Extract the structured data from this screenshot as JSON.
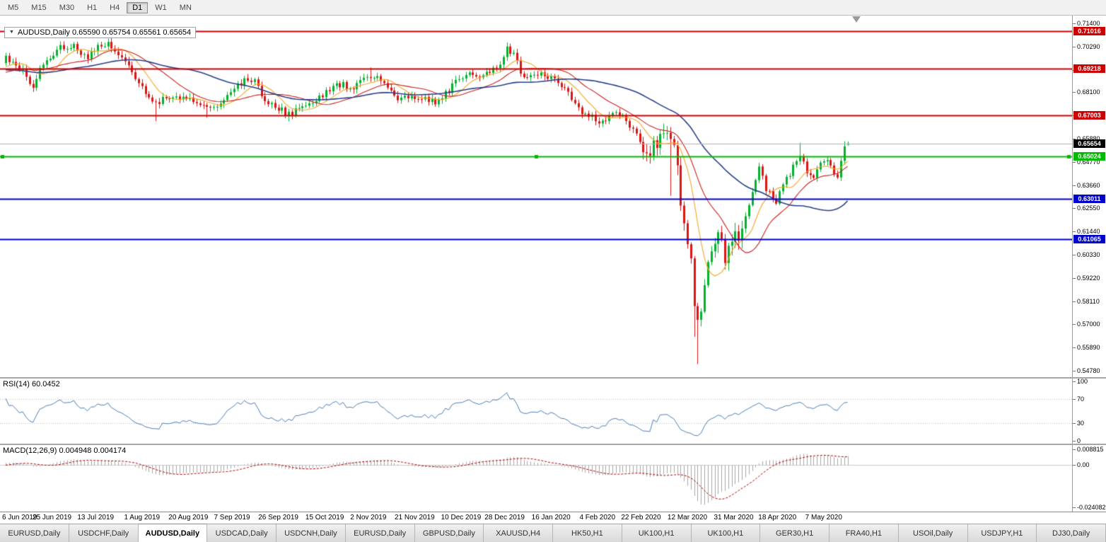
{
  "toolbar": {
    "timeframes": [
      "M5",
      "M15",
      "M30",
      "H1",
      "H4",
      "D1",
      "W1",
      "MN"
    ],
    "active": "D1"
  },
  "chart": {
    "symbol_box_text": "AUDUSD,Daily 0.65590 0.65754 0.65561 0.65654",
    "collapse_icon": "▼"
  },
  "chart_data": {
    "type": "candlestick",
    "symbol": "AUDUSD",
    "timeframe": "Daily",
    "ohlc": {
      "open": "0.65590",
      "high": "0.65754",
      "low": "0.65561",
      "close": "0.65654"
    },
    "current_price": 0.65654,
    "price_axis": {
      "min": 0.54475,
      "max": 0.71772,
      "ticks": [
        "0.71400",
        "0.70290",
        "0.69180",
        "0.68100",
        "0.66990",
        "0.65880",
        "0.64770",
        "0.63660",
        "0.62550",
        "0.61440",
        "0.60330",
        "0.59220",
        "0.58110",
        "0.57000",
        "0.55890",
        "0.54780"
      ]
    },
    "levels": [
      {
        "label": "0.71016",
        "price": 0.71016,
        "color": "#cc0000",
        "width": 2,
        "type": "resistance"
      },
      {
        "label": "0.69218",
        "price": 0.69218,
        "color": "#cc0000",
        "width": 2,
        "type": "resistance"
      },
      {
        "label": "0.67003",
        "price": 0.67003,
        "color": "#cc0000",
        "width": 2,
        "type": "resistance"
      },
      {
        "label": "0.65654",
        "price": 0.65654,
        "color": "#000000",
        "width": 1,
        "type": "current"
      },
      {
        "label": "0.65024",
        "price": 0.65024,
        "color": "#00bb00",
        "width": 2,
        "type": "support",
        "selected": true
      },
      {
        "label": "0.63011",
        "price": 0.63011,
        "color": "#0000cc",
        "width": 2,
        "type": "support"
      },
      {
        "label": "0.61065",
        "price": 0.61065,
        "color": "#0000cc",
        "width": 2,
        "type": "support"
      }
    ],
    "keyframes": [
      [
        -60,
        0.704
      ],
      [
        -45,
        0.7
      ],
      [
        -30,
        0.6905
      ],
      [
        -18,
        0.6878
      ],
      [
        -8,
        0.6898
      ],
      [
        0,
        0.6972
      ],
      [
        4,
        0.693
      ],
      [
        8,
        0.6842
      ],
      [
        10,
        0.6925
      ],
      [
        13,
        0.6962
      ],
      [
        16,
        0.7021
      ],
      [
        20,
        0.7026
      ],
      [
        24,
        0.6965
      ],
      [
        26,
        0.7015
      ],
      [
        30,
        0.704
      ],
      [
        33,
        0.699
      ],
      [
        35,
        0.695
      ],
      [
        39,
        0.6845
      ],
      [
        42,
        0.68
      ],
      [
        44,
        0.676
      ],
      [
        48,
        0.6796
      ],
      [
        53,
        0.6778
      ],
      [
        57,
        0.6755
      ],
      [
        60,
        0.6731
      ],
      [
        63,
        0.6762
      ],
      [
        67,
        0.683
      ],
      [
        70,
        0.6862
      ],
      [
        73,
        0.6879
      ],
      [
        76,
        0.6766
      ],
      [
        79,
        0.675
      ],
      [
        83,
        0.6701
      ],
      [
        86,
        0.6736
      ],
      [
        90,
        0.6758
      ],
      [
        95,
        0.6824
      ],
      [
        99,
        0.6854
      ],
      [
        101,
        0.6822
      ],
      [
        105,
        0.6893
      ],
      [
        108,
        0.689
      ],
      [
        111,
        0.6856
      ],
      [
        115,
        0.6786
      ],
      [
        120,
        0.6788
      ],
      [
        124,
        0.6772
      ],
      [
        126,
        0.6766
      ],
      [
        129,
        0.6801
      ],
      [
        131,
        0.684
      ],
      [
        135,
        0.6909
      ],
      [
        137,
        0.6881
      ],
      [
        140,
        0.6885
      ],
      [
        142,
        0.6904
      ],
      [
        145,
        0.6949
      ],
      [
        147,
        0.702
      ],
      [
        149,
        0.6996
      ],
      [
        152,
        0.6871
      ],
      [
        155,
        0.6899
      ],
      [
        158,
        0.6894
      ],
      [
        161,
        0.6861
      ],
      [
        164,
        0.6826
      ],
      [
        167,
        0.6756
      ],
      [
        169,
        0.6691
      ],
      [
        172,
        0.6701
      ],
      [
        174,
        0.6671
      ],
      [
        177,
        0.6691
      ],
      [
        179,
        0.6716
      ],
      [
        182,
        0.6681
      ],
      [
        184,
        0.6626
      ],
      [
        187,
        0.6561
      ],
      [
        189,
        0.6516
      ],
      [
        192,
        0.6624
      ],
      [
        194,
        0.6641
      ],
      [
        195,
        0.6581
      ],
      [
        197,
        0.6491
      ],
      [
        198,
        0.6291
      ],
      [
        199,
        0.6191
      ],
      [
        200,
        0.6121
      ],
      [
        201,
        0.6001
      ],
      [
        202,
        0.5781
      ],
      [
        203,
        0.5746
      ],
      [
        204,
        0.5801
      ],
      [
        205,
        0.5891
      ],
      [
        206,
        0.5966
      ],
      [
        208,
        0.6101
      ],
      [
        209,
        0.6166
      ],
      [
        211,
        0.6001
      ],
      [
        212,
        0.6071
      ],
      [
        214,
        0.6101
      ],
      [
        216,
        0.6166
      ],
      [
        218,
        0.6281
      ],
      [
        221,
        0.6441
      ],
      [
        223,
        0.6351
      ],
      [
        226,
        0.6291
      ],
      [
        228,
        0.6371
      ],
      [
        230,
        0.6421
      ],
      [
        233,
        0.6511
      ],
      [
        235,
        0.6426
      ],
      [
        237,
        0.6401
      ],
      [
        240,
        0.6491
      ],
      [
        242,
        0.6451
      ],
      [
        244,
        0.6416
      ],
      [
        246,
        0.6556
      ],
      [
        247,
        0.65654
      ]
    ],
    "spikes": [
      {
        "i": 30,
        "high": 0.7046
      },
      {
        "i": 44,
        "low": 0.6672
      },
      {
        "i": 59,
        "low": 0.6689
      },
      {
        "i": 83,
        "low": 0.6671
      },
      {
        "i": 107,
        "high": 0.6929
      },
      {
        "i": 147,
        "high": 0.7031
      },
      {
        "i": 195,
        "low": 0.6315
      },
      {
        "i": 202,
        "low": 0.564
      },
      {
        "i": 203,
        "low": 0.551
      },
      {
        "i": 233,
        "high": 0.6569
      },
      {
        "i": 246,
        "high": 0.6576
      }
    ],
    "noise": 0.0016,
    "moving_averages": [
      {
        "period": 9,
        "color": "#f5a623"
      },
      {
        "period": 20,
        "color": "#cc2020"
      },
      {
        "period": 45,
        "color": "#27408b"
      }
    ],
    "time_axis": [
      [
        "6 Jun 2019",
        0
      ],
      [
        "25 Jun 2019",
        13.6
      ],
      [
        "13 Jul 2019",
        26.4
      ],
      [
        "1 Aug 2019",
        40
      ],
      [
        "20 Aug 2019",
        53.6
      ],
      [
        "7 Sep 2019",
        66.4
      ],
      [
        "26 Sep 2019",
        80
      ],
      [
        "15 Oct 2019",
        93.6
      ],
      [
        "2 Nov 2019",
        106.4
      ],
      [
        "21 Nov 2019",
        120
      ],
      [
        "10 Dec 2019",
        133.6
      ],
      [
        "28 Dec 2019",
        146.4
      ],
      [
        "16 Jan 2020",
        160
      ],
      [
        "4 Feb 2020",
        173.6
      ],
      [
        "22 Feb 2020",
        186.4
      ],
      [
        "12 Mar 2020",
        200
      ],
      [
        "31 Mar 2020",
        213.6
      ],
      [
        "18 Apr 2020",
        226.4
      ],
      [
        "7 May 2020",
        240
      ]
    ],
    "indicators": {
      "rsi": {
        "label": "RSI(14) 60.0452",
        "period": 14,
        "value": 60.0452,
        "levels": [
          70,
          30
        ],
        "range": [
          0,
          100
        ],
        "ticks": [
          {
            "v": 100,
            "label": "100"
          },
          {
            "v": 70,
            "label": "70"
          },
          {
            "v": 30,
            "label": "30"
          },
          {
            "v": 0,
            "label": "0"
          }
        ]
      },
      "macd": {
        "label": "MACD(12,26,9) 0.004948 0.004174",
        "fast": 12,
        "slow": 26,
        "signal": 9,
        "values": [
          0.004948,
          0.004174
        ],
        "range": [
          -0.024082,
          0.008815
        ],
        "ticks": [
          {
            "v": 0.008815,
            "label": "0.008815"
          },
          {
            "v": 0,
            "label": "0.00"
          },
          {
            "v": -0.024082,
            "label": "-0.024082"
          }
        ]
      }
    },
    "colors": {
      "bull": "#00b22d",
      "bear": "#dc1414",
      "current_line": "#b0b0b0",
      "rsi_line": "#4a7fb5",
      "rsi_level_line": "#c0c0c0",
      "macd_hist": "#a6a6a6",
      "macd_signal": "#b30000",
      "macd_zero_line": "#cccccc"
    }
  },
  "bottom_tabs": {
    "active_index": 2,
    "tabs": [
      "EURUSD,Daily",
      "USDCHF,Daily",
      "AUDUSD,Daily",
      "USDCAD,Daily",
      "USDCNH,Daily",
      "EURUSD,Daily",
      "GBPUSD,Daily",
      "XAUUSD,H4",
      "HK50,H1",
      "UK100,H1",
      "UK100,H1",
      "GER30,H1",
      "FRA40,H1",
      "USOil,Daily",
      "USDJPY,H1",
      "DJ30,Daily"
    ]
  }
}
